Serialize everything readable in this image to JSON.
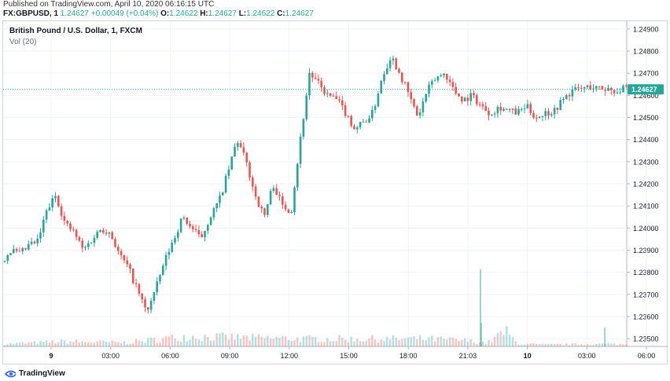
{
  "header": {
    "published": "Published on TradingView.com, April 10, 2020 06:16:15 UTC",
    "symbol": "FX:GBPUSD, 1",
    "last": "1.24627",
    "change": "+0.00049 (+0.04%)",
    "o_label": "O:",
    "o_value": "1.24622",
    "h_label": "H:",
    "h_value": "1.24627",
    "l_label": "L:",
    "l_value": "1.24622",
    "c_label": "C:",
    "c_value": "1.24627"
  },
  "legend": {
    "title": "British Pound / U.S. Dollar, 1, FXCM",
    "volume": "Vol (20)"
  },
  "footer": {
    "brand": "TradingView"
  },
  "colors": {
    "up": "#26a69a",
    "down": "#ef5350",
    "grid": "#f0f3fa",
    "axis": "#131722",
    "price_line": "#26a69a"
  },
  "chart_data": {
    "type": "candlestick",
    "title": "British Pound / U.S. Dollar, 1, FXCM",
    "x_tick_labels": [
      "9",
      "03:00",
      "06:00",
      "09:00",
      "12:00",
      "15:00",
      "18:00",
      "21:03",
      "10",
      "03:00",
      "06:00"
    ],
    "y_tick_labels": [
      "1.24900",
      "1.24800",
      "1.24700",
      "1.24600",
      "1.24500",
      "1.24400",
      "1.24300",
      "1.24200",
      "1.24100",
      "1.24000",
      "1.23900",
      "1.23800",
      "1.23700",
      "1.23600",
      "1.23500"
    ],
    "ylim": [
      1.23465,
      1.24935
    ],
    "last_price": 1.24627,
    "last_price_label": "1.24627",
    "grid": true,
    "price_path": [
      [
        0,
        1.2385
      ],
      [
        3,
        1.239
      ],
      [
        6,
        1.2388
      ],
      [
        9,
        1.2392
      ],
      [
        12,
        1.2394
      ],
      [
        15,
        1.2408
      ],
      [
        18,
        1.2415
      ],
      [
        21,
        1.2402
      ],
      [
        24,
        1.2398
      ],
      [
        27,
        1.239
      ],
      [
        30,
        1.2395
      ],
      [
        33,
        1.24
      ],
      [
        36,
        1.2398
      ],
      [
        39,
        1.2388
      ],
      [
        42,
        1.2382
      ],
      [
        45,
        1.2372
      ],
      [
        48,
        1.2362
      ],
      [
        51,
        1.2372
      ],
      [
        54,
        1.2385
      ],
      [
        57,
        1.2395
      ],
      [
        60,
        1.2405
      ],
      [
        63,
        1.24
      ],
      [
        66,
        1.2395
      ],
      [
        69,
        1.2405
      ],
      [
        72,
        1.2412
      ],
      [
        75,
        1.2425
      ],
      [
        78,
        1.244
      ],
      [
        81,
        1.243
      ],
      [
        84,
        1.2415
      ],
      [
        87,
        1.2405
      ],
      [
        90,
        1.242
      ],
      [
        93,
        1.241
      ],
      [
        96,
        1.2408
      ],
      [
        99,
        1.244
      ],
      [
        102,
        1.247
      ],
      [
        105,
        1.2465
      ],
      [
        108,
        1.246
      ],
      [
        111,
        1.2458
      ],
      [
        114,
        1.2452
      ],
      [
        117,
        1.2445
      ],
      [
        120,
        1.2448
      ],
      [
        123,
        1.2452
      ],
      [
        126,
        1.2468
      ],
      [
        129,
        1.2478
      ],
      [
        132,
        1.247
      ],
      [
        135,
        1.246
      ],
      [
        138,
        1.245
      ],
      [
        141,
        1.2462
      ],
      [
        144,
        1.2468
      ],
      [
        147,
        1.247
      ],
      [
        150,
        1.2462
      ],
      [
        153,
        1.2458
      ],
      [
        156,
        1.246
      ],
      [
        159,
        1.2455
      ],
      [
        162,
        1.2452
      ],
      [
        165,
        1.2455
      ],
      [
        168,
        1.2453
      ],
      [
        171,
        1.2452
      ],
      [
        174,
        1.2455
      ],
      [
        177,
        1.245
      ],
      [
        180,
        1.2452
      ],
      [
        183,
        1.2453
      ],
      [
        186,
        1.2458
      ],
      [
        189,
        1.2462
      ],
      [
        192,
        1.2463
      ],
      [
        195,
        1.2464
      ],
      [
        198,
        1.2463
      ],
      [
        201,
        1.2463
      ],
      [
        204,
        1.2462
      ],
      [
        207,
        1.2463
      ]
    ],
    "volume_path": [
      [
        0,
        2
      ],
      [
        20,
        4
      ],
      [
        40,
        3
      ],
      [
        60,
        8
      ],
      [
        80,
        7
      ],
      [
        100,
        6
      ],
      [
        120,
        6
      ],
      [
        140,
        6
      ],
      [
        150,
        5
      ],
      [
        160,
        3
      ],
      [
        166,
        12
      ],
      [
        170,
        2
      ],
      [
        180,
        1.5
      ],
      [
        200,
        2
      ],
      [
        207,
        1.5
      ]
    ]
  }
}
